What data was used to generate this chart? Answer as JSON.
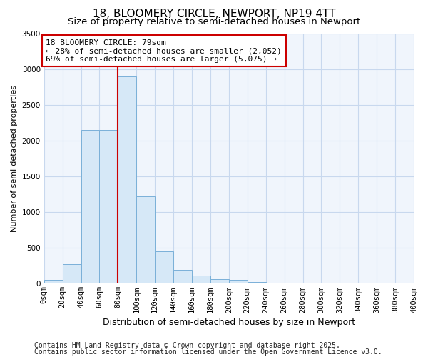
{
  "title": "18, BLOOMERY CIRCLE, NEWPORT, NP19 4TT",
  "subtitle": "Size of property relative to semi-detached houses in Newport",
  "xlabel": "Distribution of semi-detached houses by size in Newport",
  "ylabel": "Number of semi-detached properties",
  "bin_edges": [
    0,
    20,
    40,
    60,
    80,
    100,
    120,
    140,
    160,
    180,
    200,
    220,
    240,
    260,
    280,
    300,
    320,
    340,
    360,
    380,
    400
  ],
  "bin_labels": [
    "0sqm",
    "20sqm",
    "40sqm",
    "60sqm",
    "80sqm",
    "100sqm",
    "120sqm",
    "140sqm",
    "160sqm",
    "180sqm",
    "200sqm",
    "220sqm",
    "240sqm",
    "260sqm",
    "280sqm",
    "300sqm",
    "320sqm",
    "340sqm",
    "360sqm",
    "380sqm",
    "400sqm"
  ],
  "bar_heights": [
    55,
    275,
    2150,
    2150,
    2900,
    1220,
    450,
    195,
    115,
    60,
    55,
    25,
    15,
    0,
    0,
    0,
    0,
    0,
    0,
    0
  ],
  "bar_color": "#d6e8f7",
  "bar_edge_color": "#7ab0d8",
  "ylim": [
    0,
    3500
  ],
  "yticks": [
    0,
    500,
    1000,
    1500,
    2000,
    2500,
    3000,
    3500
  ],
  "property_size": 80,
  "vline_color": "#cc0000",
  "annotation_text": "18 BLOOMERY CIRCLE: 79sqm\n← 28% of semi-detached houses are smaller (2,052)\n69% of semi-detached houses are larger (5,075) →",
  "annotation_box_facecolor": "#ffffff",
  "annotation_box_edgecolor": "#cc0000",
  "footer_line1": "Contains HM Land Registry data © Crown copyright and database right 2025.",
  "footer_line2": "Contains public sector information licensed under the Open Government Licence v3.0.",
  "background_color": "#ffffff",
  "plot_bg_color": "#f0f5fc",
  "grid_color": "#c8d8ee",
  "title_fontsize": 11,
  "subtitle_fontsize": 9.5,
  "ylabel_fontsize": 8,
  "xlabel_fontsize": 9,
  "tick_fontsize": 7.5,
  "annotation_fontsize": 8,
  "footer_fontsize": 7
}
